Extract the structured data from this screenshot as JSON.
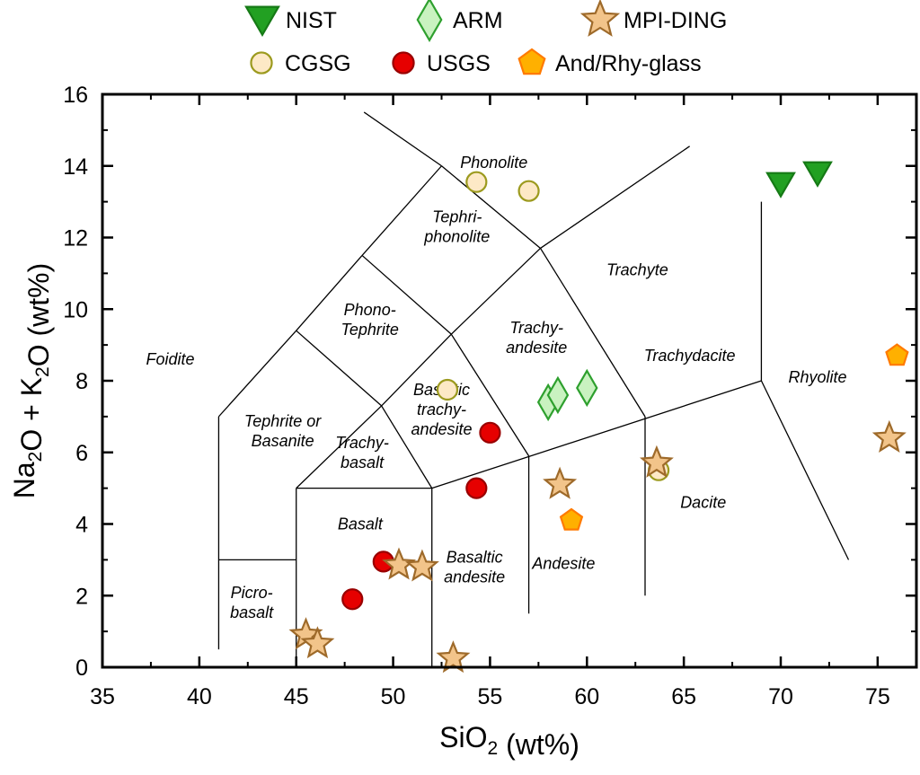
{
  "chart_data": {
    "type": "scatter",
    "xlabel": "SiO2 (wt%)",
    "ylabel": "Na2O + K2O (wt%)",
    "xlim": [
      35,
      77
    ],
    "ylim": [
      0,
      16
    ],
    "x_ticks": [
      "35",
      "40",
      "45",
      "50",
      "55",
      "60",
      "65",
      "70",
      "75"
    ],
    "y_ticks": [
      "0",
      "2",
      "4",
      "6",
      "8",
      "10",
      "12",
      "14",
      "16"
    ],
    "grid": false,
    "legend_position": "top",
    "fields": [
      {
        "name": "Foidite",
        "lines": [
          "Foidite"
        ],
        "x": 38.5,
        "y": 8.6
      },
      {
        "name": "Phonolite",
        "lines": [
          "Phonolite"
        ],
        "x": 55.2,
        "y": 14.1
      },
      {
        "name": "Tephri-phonolite",
        "lines": [
          "Tephri-",
          "phonolite"
        ],
        "x": 53.3,
        "y": 12.3
      },
      {
        "name": "Trachyte",
        "lines": [
          "Trachyte"
        ],
        "x": 62.6,
        "y": 11.1
      },
      {
        "name": "Phono-Tephrite",
        "lines": [
          "Phono-",
          "Tephrite"
        ],
        "x": 48.8,
        "y": 9.7
      },
      {
        "name": "Trachy-andesite",
        "lines": [
          "Trachy-",
          "andesite"
        ],
        "x": 57.4,
        "y": 9.2
      },
      {
        "name": "Trachydacite",
        "lines": [
          "Trachydacite"
        ],
        "x": 65.3,
        "y": 8.7
      },
      {
        "name": "Rhyolite",
        "lines": [
          "Rhyolite"
        ],
        "x": 71.9,
        "y": 8.1
      },
      {
        "name": "Tephrite or Basanite",
        "lines": [
          "Tephrite or",
          "Basanite"
        ],
        "x": 44.3,
        "y": 6.6
      },
      {
        "name": "Basaltic trachy-andesite",
        "lines": [
          "Basaltic",
          "trachy-",
          "andesite"
        ],
        "x": 52.5,
        "y": 7.2
      },
      {
        "name": "Trachy-basalt",
        "lines": [
          "Trachy-",
          "basalt"
        ],
        "x": 48.4,
        "y": 6.0
      },
      {
        "name": "Dacite",
        "lines": [
          "Dacite"
        ],
        "x": 66.0,
        "y": 4.6
      },
      {
        "name": "Basalt",
        "lines": [
          "Basalt"
        ],
        "x": 48.3,
        "y": 4.0
      },
      {
        "name": "Andesite",
        "lines": [
          "Andesite"
        ],
        "x": 58.8,
        "y": 2.9
      },
      {
        "name": "Basaltic andesite",
        "lines": [
          "Basaltic",
          "andesite"
        ],
        "x": 54.2,
        "y": 2.8
      },
      {
        "name": "Picro-basalt",
        "lines": [
          "Picro-",
          "basalt"
        ],
        "x": 42.7,
        "y": 1.8
      }
    ],
    "series": [
      {
        "name": "NIST",
        "marker": "triangle-down",
        "fill": "#22a022",
        "stroke": "#167a16",
        "points": [
          [
            70.0,
            13.5
          ],
          [
            71.9,
            13.8
          ]
        ]
      },
      {
        "name": "ARM",
        "marker": "diamond",
        "fill": "#c9f2c0",
        "stroke": "#2ea02e",
        "points": [
          [
            58.0,
            7.4
          ],
          [
            58.5,
            7.6
          ],
          [
            60.0,
            7.8
          ]
        ]
      },
      {
        "name": "MPI-DING",
        "marker": "star",
        "fill": "#f2c48a",
        "stroke": "#9e6a2a",
        "points": [
          [
            45.5,
            0.9
          ],
          [
            46.1,
            0.65
          ],
          [
            50.3,
            2.85
          ],
          [
            51.5,
            2.8
          ],
          [
            53.1,
            0.25
          ],
          [
            58.6,
            5.1
          ],
          [
            63.6,
            5.7
          ],
          [
            75.6,
            6.4
          ]
        ]
      },
      {
        "name": "CGSG",
        "marker": "circle",
        "fill": "#fde9c6",
        "stroke": "#9c9a1e",
        "points": [
          [
            52.8,
            7.75
          ],
          [
            54.3,
            13.55
          ],
          [
            57.0,
            13.3
          ],
          [
            63.7,
            5.5
          ]
        ]
      },
      {
        "name": "USGS",
        "marker": "circle",
        "fill": "#e60000",
        "stroke": "#990000",
        "points": [
          [
            47.9,
            1.9
          ],
          [
            49.5,
            2.95
          ],
          [
            54.3,
            5.0
          ],
          [
            55.0,
            6.55
          ]
        ]
      },
      {
        "name": "And/Rhy-glass",
        "marker": "pentagon",
        "fill": "#ffb000",
        "stroke": "#ff7a00",
        "points": [
          [
            59.2,
            4.1
          ],
          [
            76.0,
            8.7
          ]
        ]
      }
    ]
  }
}
